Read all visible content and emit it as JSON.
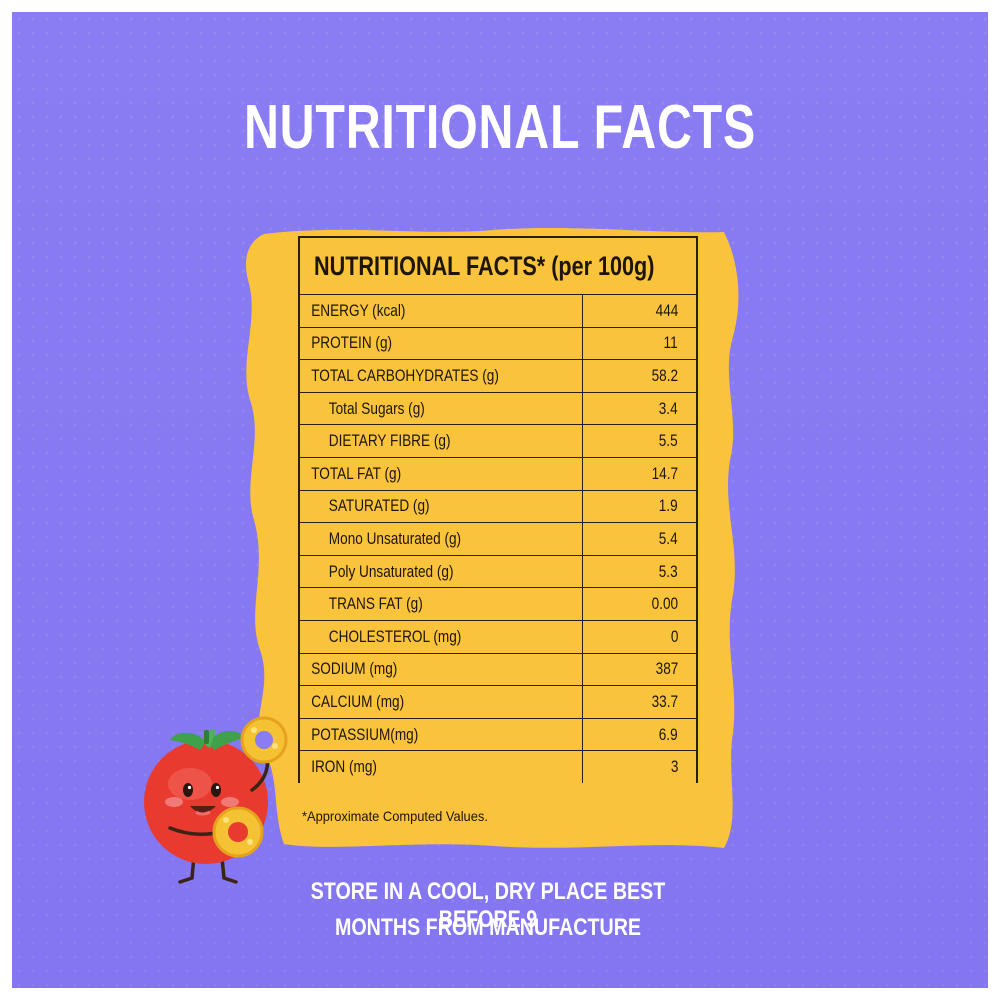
{
  "page_title": "NUTRITIONAL FACTS",
  "table": {
    "heading": "NUTRITIONAL FACTS* (per 100g)",
    "rows": [
      {
        "name": "ENERGY (kcal)",
        "value": "444"
      },
      {
        "name": "PROTEIN (g)",
        "value": "11"
      },
      {
        "name": "TOTAL CARBOHYDRATES (g)",
        "value": "58.2"
      },
      {
        "name": "Total Sugars (g)",
        "value": "3.4"
      },
      {
        "name": "DIETARY FIBRE (g)",
        "value": "5.5"
      },
      {
        "name": "TOTAL FAT (g)",
        "value": "14.7"
      },
      {
        "name": "SATURATED (g)",
        "value": "1.9"
      },
      {
        "name": "Mono Unsaturated (g)",
        "value": "5.4"
      },
      {
        "name": "Poly Unsaturated (g)",
        "value": "5.3"
      },
      {
        "name": "TRANS FAT (g)",
        "value": "0.00"
      },
      {
        "name": "CHOLESTEROL (mg)",
        "value": "0"
      },
      {
        "name": "SODIUM (mg)",
        "value": "387"
      },
      {
        "name": "CALCIUM (mg)",
        "value": "33.7"
      },
      {
        "name": "POTASSIUM(mg)",
        "value": "6.9"
      },
      {
        "name": "IRON (mg)",
        "value": "3"
      }
    ],
    "footnote": "*Approximate Computed Values."
  },
  "storage": {
    "line1": "STORE IN A COOL, DRY PLACE BEST BEFORE 9",
    "line2": "MONTHS FROM MANUFACTURE"
  },
  "colors": {
    "background": "#8a7cf2",
    "card": "#f9c33c",
    "text_dark": "#1e1508",
    "tomato": "#e93a30"
  },
  "icons": {
    "mascot": "tomato-mascot-icon",
    "snack": "puff-ring-icon"
  }
}
